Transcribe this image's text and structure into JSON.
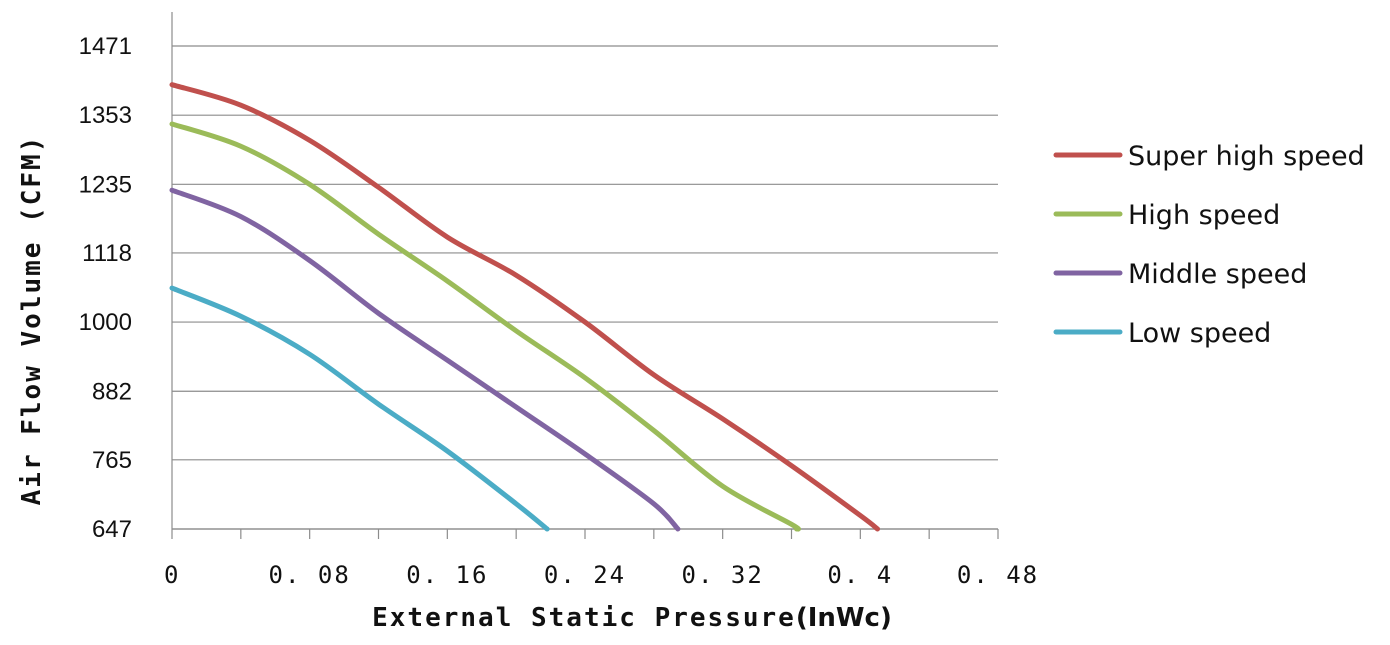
{
  "chart_data": {
    "type": "line",
    "title": "",
    "xlabel": "External Static Pressure",
    "xlabel_unit": "(InWc)",
    "ylabel": "Air Flow Volume (CFM)",
    "xlim": [
      0,
      0.48
    ],
    "ylim": [
      647,
      1471
    ],
    "x_ticks": [
      0,
      0.08,
      0.16,
      0.24,
      0.32,
      0.4,
      0.48
    ],
    "x_tick_labels": [
      "0",
      "0. 08",
      "0. 16",
      "0. 24",
      "0. 32",
      "0. 4",
      "0. 48"
    ],
    "x_minor_tick_step": 0.04,
    "y_ticks": [
      647,
      765,
      882,
      1000,
      1118,
      1235,
      1353,
      1471
    ],
    "y_tick_labels": [
      "647",
      "765",
      "882",
      "1000",
      "1118",
      "1235",
      "1353",
      "1471"
    ],
    "grid": true,
    "legend_position": "right",
    "series": [
      {
        "name": "Super high speed",
        "color": "#c0504d",
        "x": [
          0,
          0.04,
          0.08,
          0.12,
          0.16,
          0.2,
          0.24,
          0.28,
          0.32,
          0.36,
          0.4,
          0.41
        ],
        "y": [
          1405,
          1370,
          1310,
          1230,
          1145,
          1080,
          1000,
          910,
          835,
          755,
          670,
          647
        ]
      },
      {
        "name": "High speed",
        "color": "#9bbb59",
        "x": [
          0,
          0.04,
          0.08,
          0.12,
          0.16,
          0.2,
          0.24,
          0.28,
          0.32,
          0.36,
          0.363
        ],
        "y": [
          1338,
          1300,
          1235,
          1150,
          1070,
          985,
          905,
          815,
          720,
          655,
          647
        ]
      },
      {
        "name": "Middle speed",
        "color": "#8064a2",
        "x": [
          0,
          0.04,
          0.08,
          0.12,
          0.16,
          0.2,
          0.24,
          0.28,
          0.294
        ],
        "y": [
          1225,
          1180,
          1105,
          1015,
          935,
          855,
          775,
          690,
          647
        ]
      },
      {
        "name": "Low speed",
        "color": "#4bacc6",
        "x": [
          0,
          0.04,
          0.08,
          0.12,
          0.16,
          0.2,
          0.218
        ],
        "y": [
          1058,
          1010,
          945,
          860,
          780,
          690,
          647
        ]
      }
    ]
  }
}
